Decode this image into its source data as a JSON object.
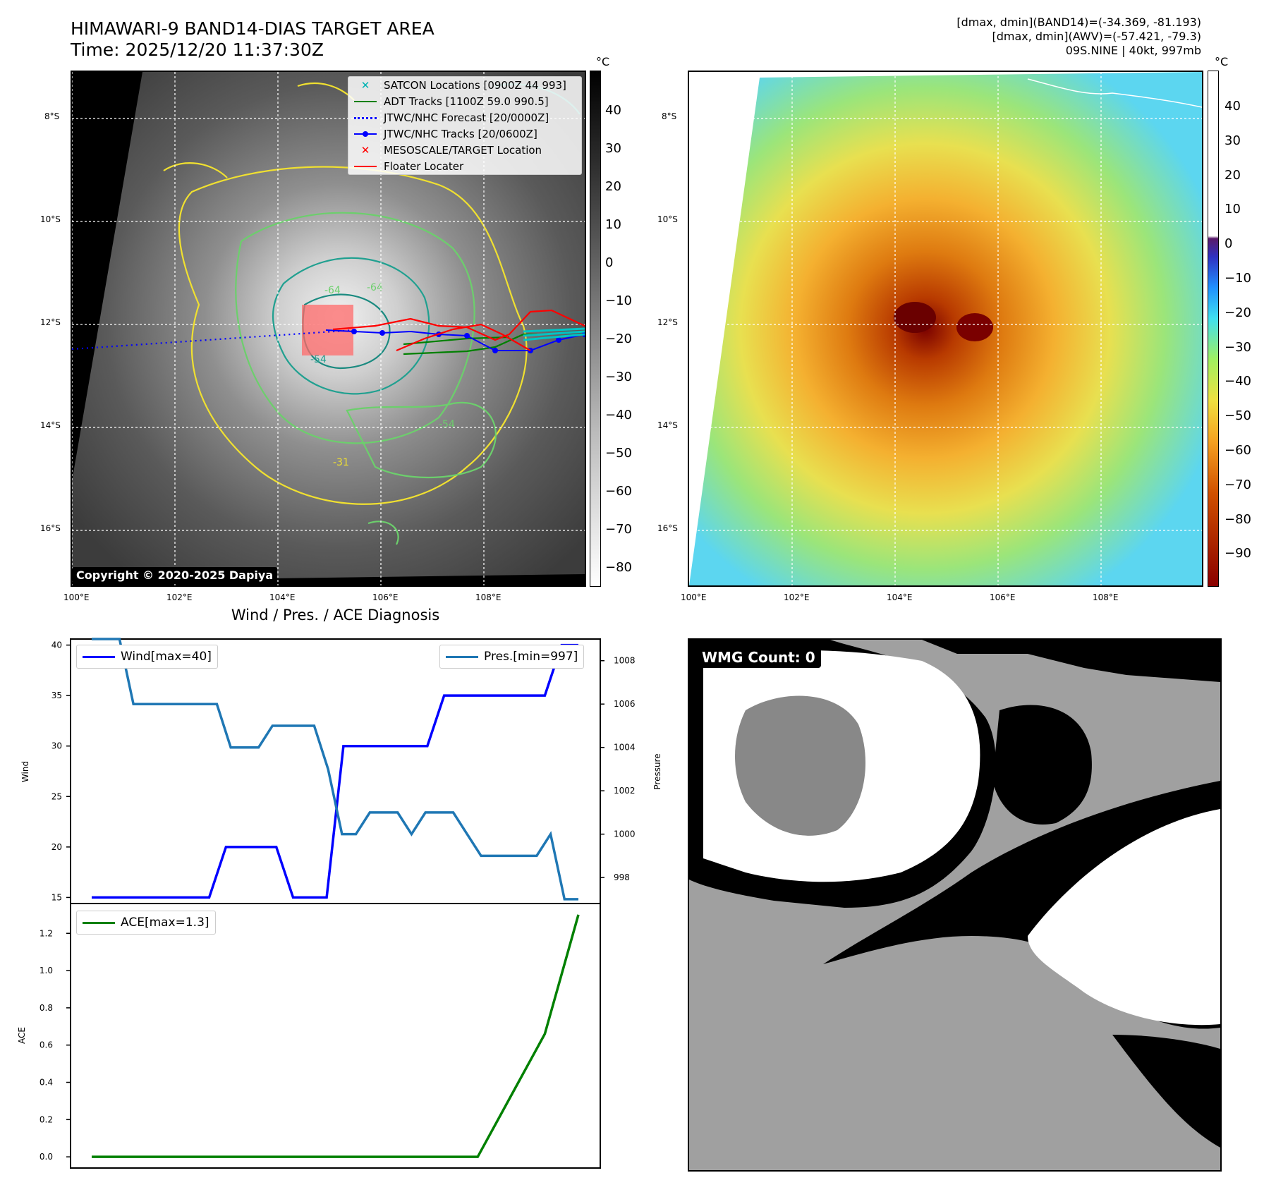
{
  "header": {
    "title_line1": "HIMAWARI-9 BAND14-DIAS TARGET AREA",
    "title_line2": "Time: 2025/12/20 11:37:30Z",
    "right_line1": "[dmax, dmin](BAND14)=(-34.369, -81.193)",
    "right_line2": "[dmax, dmin](AWV)=(-57.421, -79.3)",
    "right_line3": "09S.NINE | 40kt, 997mb"
  },
  "map": {
    "lon_ticks": [
      "100°E",
      "102°E",
      "104°E",
      "106°E",
      "108°E"
    ],
    "lat_ticks": [
      "8°S",
      "10°S",
      "12°S",
      "14°S",
      "16°S"
    ],
    "copyright": "Copyright © 2020-2025 Dapiya",
    "contour_labels": [
      "-64",
      "-64",
      "-54",
      "-31",
      "-54"
    ],
    "legend": [
      {
        "label": "SATCON Locations [0900Z 44 993]",
        "color": "#00b3b3",
        "symbol": "x"
      },
      {
        "label": "ADT Tracks [1100Z 59.0 990.5]",
        "color": "#008000",
        "symbol": "line"
      },
      {
        "label": "JTWC/NHC Forecast [20/0000Z]",
        "color": "#0000ff",
        "symbol": "dotted"
      },
      {
        "label": "JTWC/NHC Tracks [20/0600Z]",
        "color": "#0000ff",
        "symbol": "dotline"
      },
      {
        "label": "MESOSCALE/TARGET Location",
        "color": "#ff0000",
        "symbol": "x"
      },
      {
        "label": "Floater Locater",
        "color": "#ff0000",
        "symbol": "line"
      }
    ]
  },
  "colorbar_left": {
    "unit": "°C",
    "ticks": [
      "40",
      "30",
      "20",
      "10",
      "0",
      "−10",
      "−20",
      "−30",
      "−40",
      "−50",
      "−60",
      "−70",
      "−80"
    ]
  },
  "colorbar_right": {
    "unit": "°C",
    "ticks": [
      "40",
      "30",
      "20",
      "10",
      "0",
      "−10",
      "−20",
      "−30",
      "−40",
      "−50",
      "−60",
      "−70",
      "−80",
      "−90"
    ]
  },
  "diagnosis": {
    "title": "Wind / Pres. / ACE Diagnosis",
    "wind_ylabel": "Wind",
    "pres_ylabel": "Pressure",
    "ace_ylabel": "ACE",
    "wind_ticks": [
      "40",
      "35",
      "30",
      "25",
      "20",
      "15"
    ],
    "pres_ticks": [
      "1008",
      "1006",
      "1004",
      "1002",
      "1000",
      "998"
    ],
    "ace_ticks": [
      "1.2",
      "1.0",
      "0.8",
      "0.6",
      "0.4",
      "0.2",
      "0.0"
    ],
    "wind_legend": "Wind[max=40]",
    "pres_legend": "Pres.[min=997]",
    "ace_legend": "ACE[max=1.3]"
  },
  "wmg": {
    "label": "WMG Count: 0"
  },
  "chart_data": [
    {
      "type": "line",
      "title": "Wind / Pres. / ACE Diagnosis",
      "ylabel": "Wind",
      "ylim": [
        14.4,
        40.6
      ],
      "series": [
        {
          "name": "Wind[max=40]",
          "color": "#0000ff",
          "values": [
            15,
            15,
            15,
            15,
            15,
            15,
            15,
            15,
            20,
            20,
            20,
            20,
            15,
            15,
            15,
            30,
            30,
            30,
            30,
            30,
            30,
            35,
            35,
            35,
            35,
            35,
            35,
            35,
            40,
            40
          ]
        }
      ]
    },
    {
      "type": "line",
      "ylabel": "Pressure",
      "ylim": [
        996.8,
        1009.0
      ],
      "series": [
        {
          "name": "Pres.[min=997]",
          "color": "#1f77b4",
          "values": [
            1009,
            1009,
            1009,
            1006,
            1006,
            1006,
            1006,
            1006,
            1006,
            1006,
            1004,
            1004,
            1004,
            1005,
            1005,
            1005,
            1005,
            1003,
            1000,
            1000,
            1001,
            1001,
            1001,
            1000,
            1001,
            1001,
            1001,
            1000,
            999,
            999,
            999,
            999,
            999,
            1000,
            997,
            997
          ]
        }
      ]
    },
    {
      "type": "line",
      "ylabel": "ACE",
      "ylim": [
        -0.06,
        1.36
      ],
      "series": [
        {
          "name": "ACE[max=1.3]",
          "color": "#008000",
          "x": [
            0,
            23,
            25,
            27,
            28,
            29
          ],
          "values": [
            0,
            0,
            0.33,
            0.66,
            0.98,
            1.3
          ]
        }
      ]
    }
  ]
}
